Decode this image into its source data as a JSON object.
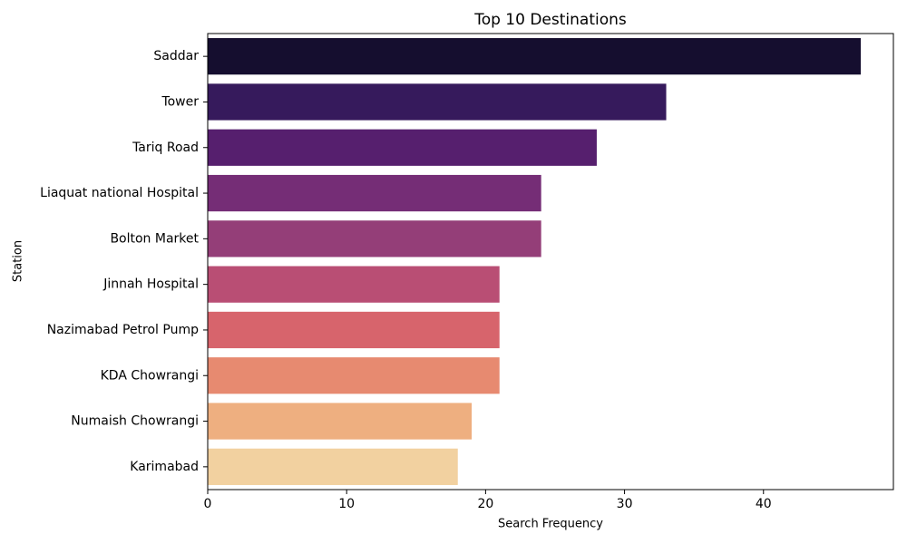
{
  "chart_data": {
    "type": "hbar",
    "title": "Top 10 Destinations",
    "x_label": "Search Frequency",
    "y_label": "Station",
    "categories": [
      "Saddar",
      "Tower",
      "Tariq Road",
      "Liaquat national Hospital",
      "Bolton Market",
      "Jinnah Hospital",
      "Nazimabad Petrol Pump",
      "KDA Chowrangi",
      "Numaish Chowrangi",
      "Karimabad"
    ],
    "values": [
      47,
      33,
      28,
      24,
      24,
      21,
      21,
      21,
      19,
      18
    ],
    "colors": [
      "#150e2f",
      "#361a5c",
      "#561f6e",
      "#752d76",
      "#943e78",
      "#b94e74",
      "#d7646c",
      "#e78a70",
      "#eeaf80",
      "#f2d1a0"
    ],
    "xlim": [
      0,
      49.35
    ],
    "xticks": [
      0,
      10,
      20,
      30,
      40
    ]
  }
}
